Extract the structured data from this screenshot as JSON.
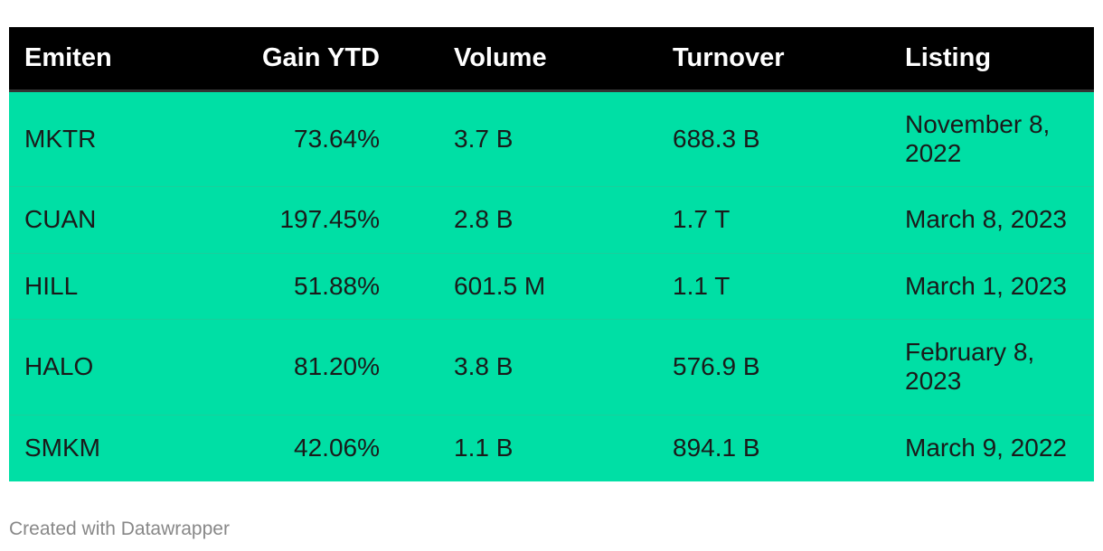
{
  "chart_data": {
    "type": "table",
    "columns": [
      "Emiten",
      "Gain YTD",
      "Volume",
      "Turnover",
      "Listing"
    ],
    "rows": [
      [
        "MKTR",
        "73.64%",
        "3.7 B",
        "688.3 B",
        "November 8, 2022"
      ],
      [
        "CUAN",
        "197.45%",
        "2.8 B",
        "1.7 T",
        "March 8, 2023"
      ],
      [
        "HILL",
        "51.88%",
        "601.5 M",
        "1.1 T",
        "March 1, 2023"
      ],
      [
        "HALO",
        "81.20%",
        "3.8 B",
        "576.9 B",
        "February 8, 2023"
      ],
      [
        "SMKM",
        "42.06%",
        "1.1 B",
        "894.1 B",
        "March 9, 2022"
      ]
    ]
  },
  "footer": {
    "credit": "Created with Datawrapper"
  },
  "colors": {
    "header_bg": "#000000",
    "row_bg": "#00dfa5",
    "credit": "#888888"
  }
}
